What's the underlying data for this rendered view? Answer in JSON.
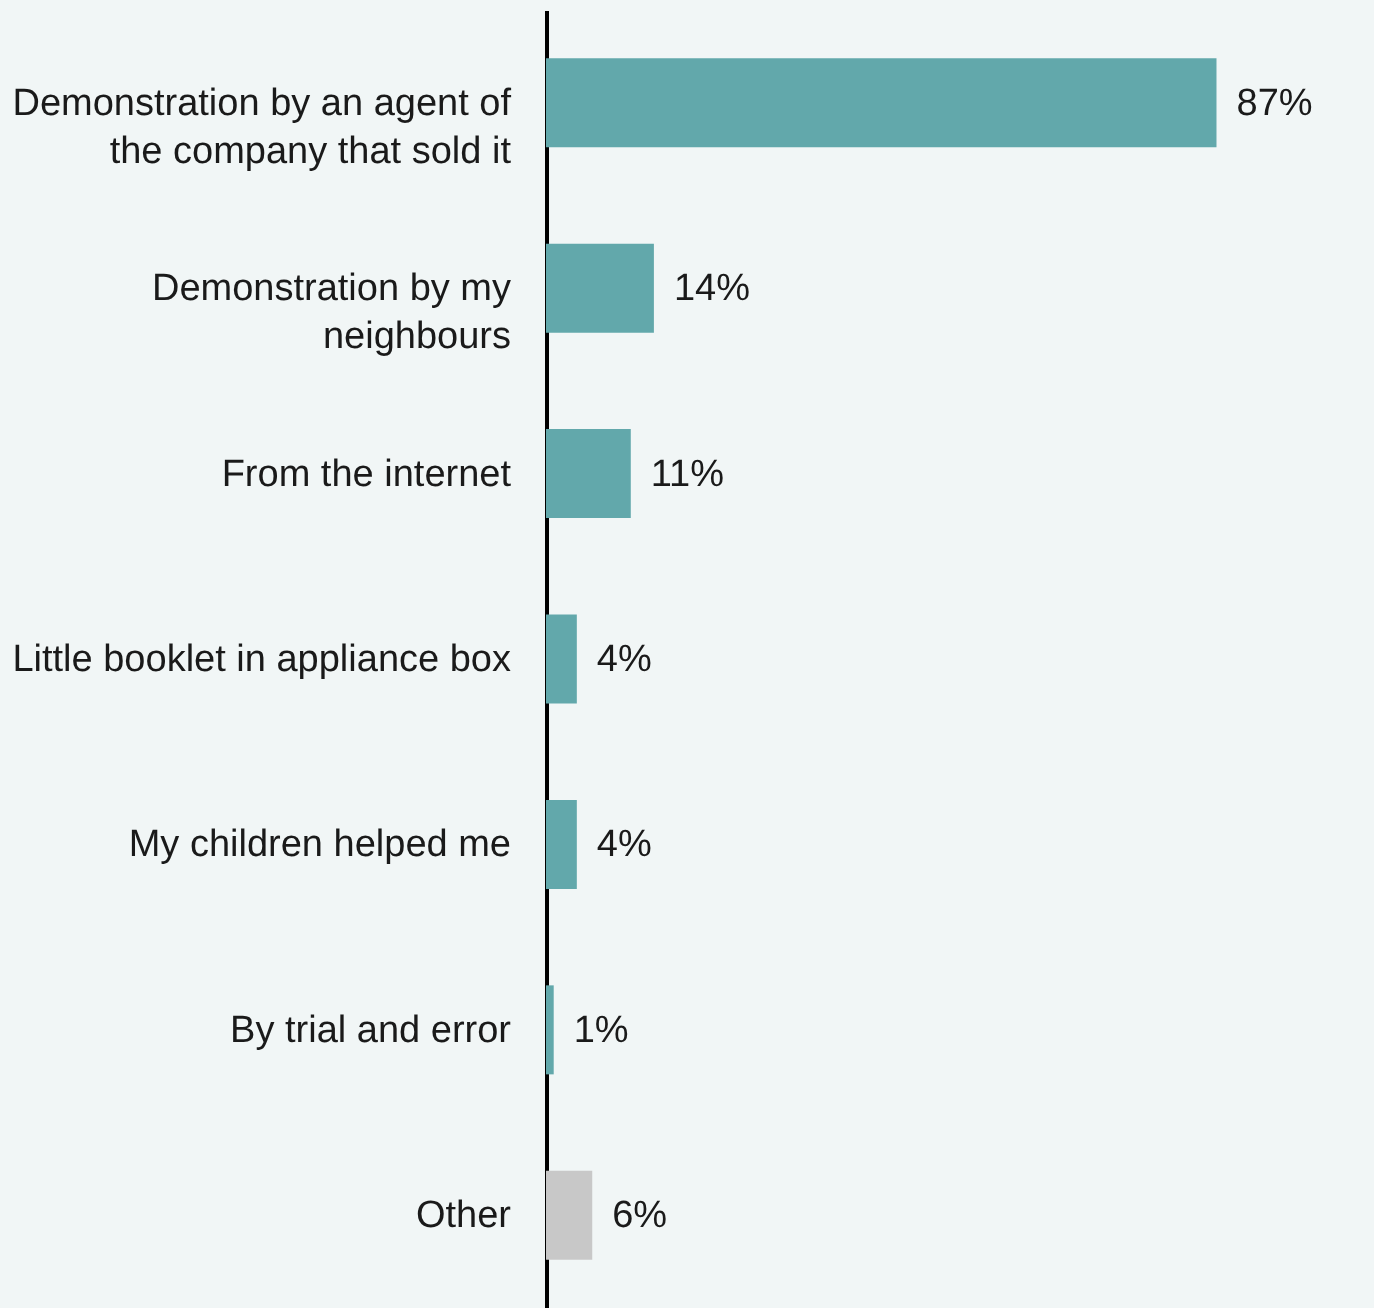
{
  "chart_data": {
    "type": "bar",
    "orientation": "horizontal",
    "categories": [
      "Demonstration by an agent of\nthe company that sold it",
      "Demonstration by my\nneighbours",
      "From the internet",
      "Little booklet in appliance box",
      "My children helped me",
      "By trial and error",
      "Other"
    ],
    "values": [
      87,
      14,
      11,
      4,
      4,
      1,
      6
    ],
    "value_labels": [
      "87%",
      "14%",
      "11%",
      "4%",
      "4%",
      "1%",
      "6%"
    ],
    "colors": [
      "#62a8ab",
      "#62a8ab",
      "#62a8ab",
      "#62a8ab",
      "#62a8ab",
      "#62a8ab",
      "#c8c8c8"
    ]
  }
}
